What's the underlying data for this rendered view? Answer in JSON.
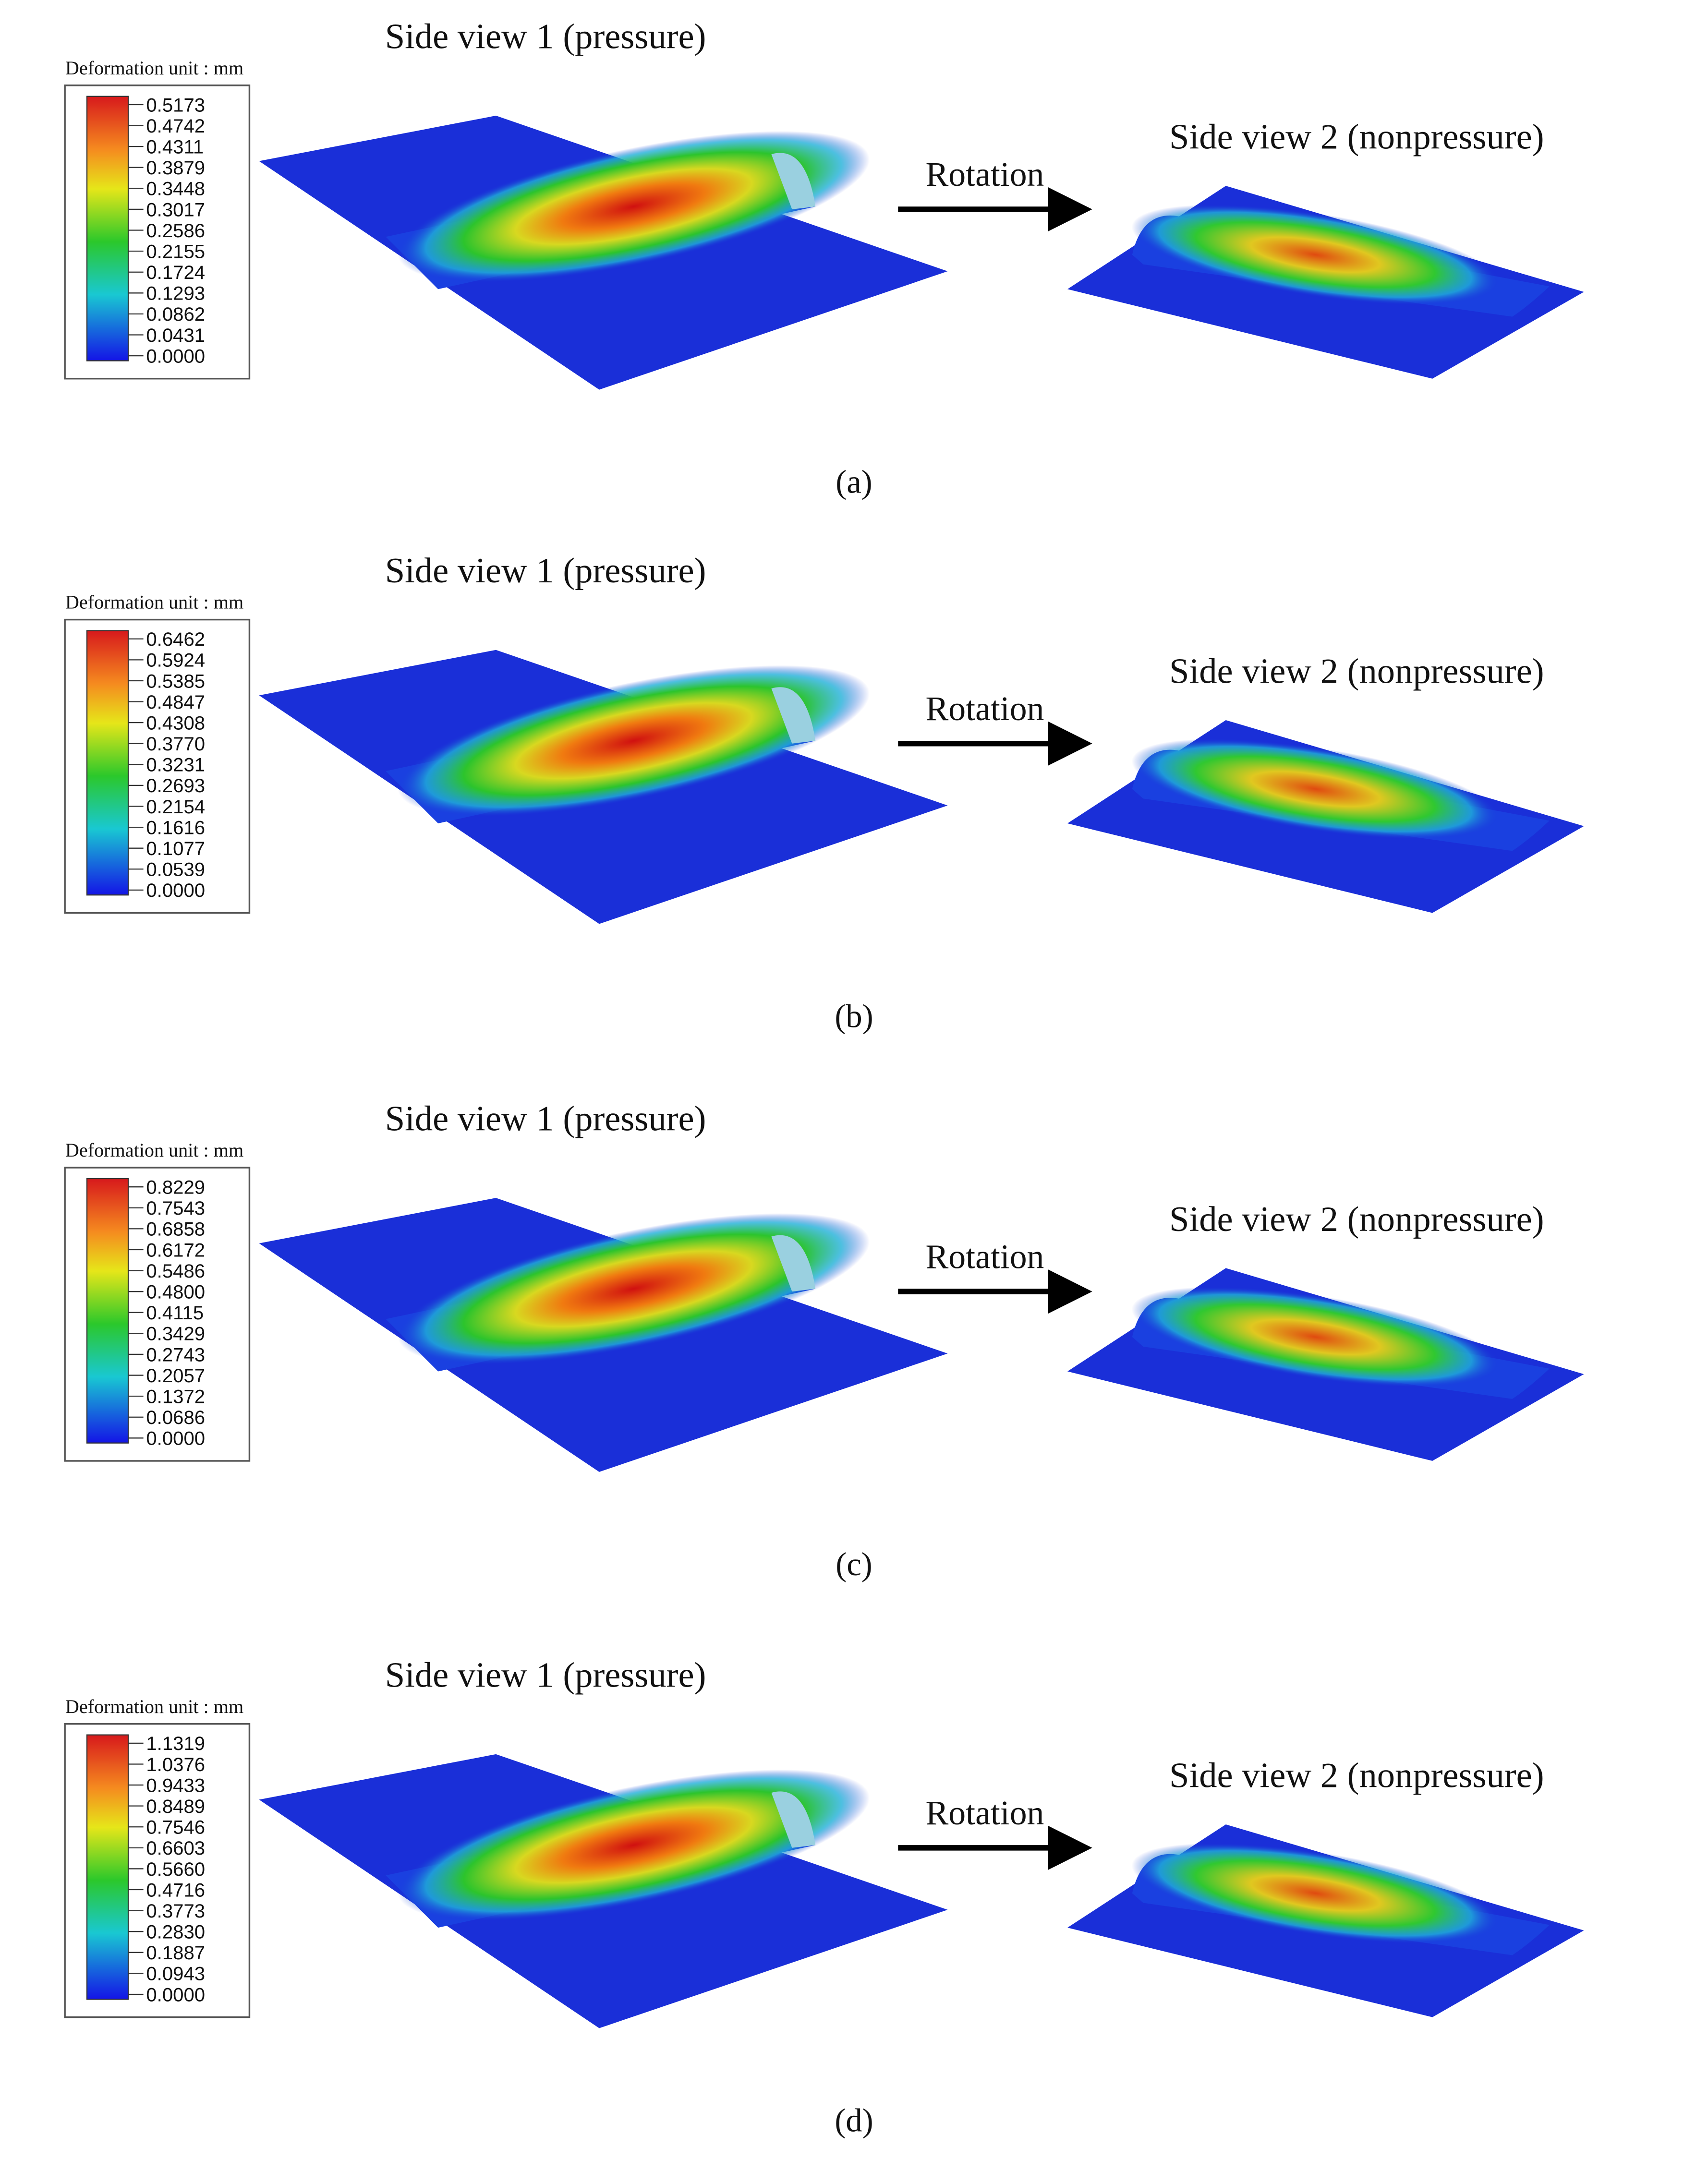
{
  "panels": [
    {
      "legend_title": "Deformation unit : mm",
      "legend_labels": [
        "0.5173",
        "0.4742",
        "0.4311",
        "0.3879",
        "0.3448",
        "0.3017",
        "0.2586",
        "0.2155",
        "0.1724",
        "0.1293",
        "0.0862",
        "0.0431",
        "0.0000"
      ],
      "view1_title": "Side view 1 (pressure)",
      "rotation_label": "Rotation",
      "view2_title": "Side view 2 (nonpressure)",
      "caption": "(a)"
    },
    {
      "legend_title": "Deformation unit : mm",
      "legend_labels": [
        "0.6462",
        "0.5924",
        "0.5385",
        "0.4847",
        "0.4308",
        "0.3770",
        "0.3231",
        "0.2693",
        "0.2154",
        "0.1616",
        "0.1077",
        "0.0539",
        "0.0000"
      ],
      "view1_title": "Side view 1 (pressure)",
      "rotation_label": "Rotation",
      "view2_title": "Side view 2 (nonpressure)",
      "caption": "(b)"
    },
    {
      "legend_title": "Deformation unit : mm",
      "legend_labels": [
        "0.8229",
        "0.7543",
        "0.6858",
        "0.6172",
        "0.5486",
        "0.4800",
        "0.4115",
        "0.3429",
        "0.2743",
        "0.2057",
        "0.1372",
        "0.0686",
        "0.0000"
      ],
      "view1_title": "Side view 1 (pressure)",
      "rotation_label": "Rotation",
      "view2_title": "Side view 2 (nonpressure)",
      "caption": "(c)"
    },
    {
      "legend_title": "Deformation unit : mm",
      "legend_labels": [
        "1.1319",
        "1.0376",
        "0.9433",
        "0.8489",
        "0.7546",
        "0.6603",
        "0.5660",
        "0.4716",
        "0.3773",
        "0.2830",
        "0.1887",
        "0.0943",
        "0.0000"
      ],
      "view1_title": "Side view 1 (pressure)",
      "rotation_label": "Rotation",
      "view2_title": "Side view 2 (nonpressure)",
      "caption": "(d)"
    }
  ]
}
